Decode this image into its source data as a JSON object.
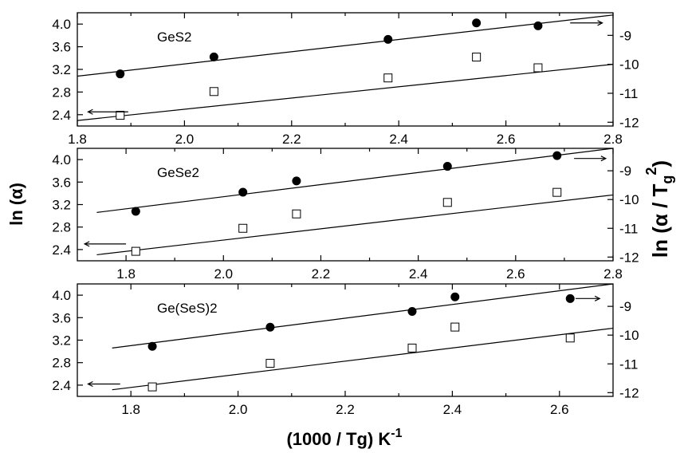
{
  "chart_data": {
    "type": "scatter",
    "xlabel": "(1000 / Tg) K",
    "xlabel_sup": "-1",
    "ylabel_left": "ln (α)",
    "ylabel_right_main": "ln (α / T",
    "ylabel_right_sub": "g",
    "ylabel_right_sup": "2",
    "ylabel_right_close": ")",
    "panels": [
      {
        "label": "GeS2",
        "xlim": [
          1.8,
          2.8
        ],
        "xticks": [
          1.8,
          2.0,
          2.2,
          2.4,
          2.6,
          2.8
        ],
        "xtick_labels": [
          "1.8",
          "2.0",
          "2.2",
          "2.4",
          "2.6",
          "2.8"
        ],
        "ylim_left": [
          2.2,
          4.2
        ],
        "yticks_left": [
          2.4,
          2.8,
          3.2,
          3.6,
          4.0
        ],
        "ytick_labels_left": [
          "2.4",
          "2.8",
          "3.2",
          "3.6",
          "4.0"
        ],
        "ylim_right": [
          -12.13,
          -8.22
        ],
        "yticks_right": [
          -12,
          -11,
          -10,
          -9
        ],
        "ytick_labels_right": [
          "-12",
          "-11",
          "-10",
          "-9"
        ],
        "series": [
          {
            "marker": "filled",
            "axis": "left",
            "x": [
              1.88,
              2.055,
              2.38,
              2.545,
              2.66
            ],
            "y": [
              3.12,
              3.42,
              3.73,
              4.02,
              3.97
            ]
          },
          {
            "marker": "open",
            "axis": "right",
            "x": [
              1.88,
              2.055,
              2.38,
              2.545,
              2.66
            ],
            "y": [
              -11.76,
              -10.94,
              -10.47,
              -9.75,
              -10.12
            ]
          }
        ],
        "fits": [
          {
            "axis": "left",
            "x": [
              1.8,
              2.8
            ],
            "y": [
              3.08,
              4.16
            ]
          },
          {
            "axis": "right",
            "x": [
              1.8,
              2.8
            ],
            "y": [
              -11.94,
              -10.0
            ]
          }
        ],
        "arrows": [
          {
            "dir": "left",
            "x": [
              1.895,
              1.82
            ],
            "y": 2.45,
            "axis": "left"
          },
          {
            "dir": "right",
            "x": [
              2.72,
              2.78
            ],
            "y": 4.02,
            "axis": "left"
          }
        ]
      },
      {
        "label": "GeSe2",
        "xlim": [
          1.7,
          2.8
        ],
        "xticks": [
          1.8,
          2.0,
          2.2,
          2.4,
          2.6,
          2.8
        ],
        "xtick_labels": [
          "1.8",
          "2.0",
          "2.2",
          "2.4",
          "2.6",
          "2.8"
        ],
        "ylim_left": [
          2.2,
          4.2
        ],
        "yticks_left": [
          2.4,
          2.8,
          3.2,
          3.6,
          4.0
        ],
        "ytick_labels_left": [
          "2.4",
          "2.8",
          "3.2",
          "3.6",
          "4.0"
        ],
        "ylim_right": [
          -12.13,
          -8.22
        ],
        "yticks_right": [
          -12,
          -11,
          -10,
          -9
        ],
        "ytick_labels_right": [
          "-12",
          "-11",
          "-10",
          "-9"
        ],
        "series": [
          {
            "marker": "filled",
            "axis": "left",
            "x": [
              1.82,
              2.04,
              2.15,
              2.46,
              2.685
            ],
            "y": [
              3.08,
              3.42,
              3.62,
              3.88,
              4.07
            ]
          },
          {
            "marker": "open",
            "axis": "right",
            "x": [
              1.82,
              2.04,
              2.15,
              2.46,
              2.685
            ],
            "y": [
              -11.8,
              -11.0,
              -10.5,
              -10.1,
              -9.75
            ]
          }
        ],
        "fits": [
          {
            "axis": "left",
            "x": [
              1.74,
              2.8
            ],
            "y": [
              3.06,
              4.2
            ]
          },
          {
            "axis": "right",
            "x": [
              1.74,
              2.8
            ],
            "y": [
              -11.92,
              -9.84
            ]
          }
        ],
        "arrows": [
          {
            "dir": "left",
            "x": [
              1.8,
              1.715
            ],
            "y": 2.5,
            "axis": "left"
          },
          {
            "dir": "right",
            "x": [
              2.72,
              2.785
            ],
            "y": 4.02,
            "axis": "left"
          }
        ]
      },
      {
        "label": "Ge(SeS)2",
        "xlim": [
          1.7,
          2.7
        ],
        "xticks": [
          1.8,
          2.0,
          2.2,
          2.4,
          2.6
        ],
        "xtick_labels": [
          "1.8",
          "2.0",
          "2.2",
          "2.4",
          "2.6"
        ],
        "ylim_left": [
          2.2,
          4.2
        ],
        "yticks_left": [
          2.4,
          2.8,
          3.2,
          3.6,
          4.0
        ],
        "ytick_labels_left": [
          "2.4",
          "2.8",
          "3.2",
          "3.6",
          "4.0"
        ],
        "ylim_right": [
          -12.13,
          -8.22
        ],
        "yticks_right": [
          -12,
          -11,
          -10,
          -9
        ],
        "ytick_labels_right": [
          "-12",
          "-11",
          "-10",
          "-9"
        ],
        "series": [
          {
            "marker": "filled",
            "axis": "left",
            "x": [
              1.84,
              2.06,
              2.325,
              2.405,
              2.62
            ],
            "y": [
              3.09,
              3.43,
              3.71,
              3.97,
              3.94
            ]
          },
          {
            "marker": "open",
            "axis": "right",
            "x": [
              1.84,
              2.06,
              2.325,
              2.405,
              2.62
            ],
            "y": [
              -11.8,
              -10.98,
              -10.45,
              -9.72,
              -10.1
            ]
          }
        ],
        "fits": [
          {
            "axis": "left",
            "x": [
              1.765,
              2.7
            ],
            "y": [
              3.06,
              4.2
            ]
          },
          {
            "axis": "right",
            "x": [
              1.765,
              2.7
            ],
            "y": [
              -11.9,
              -9.76
            ]
          }
        ],
        "arrows": [
          {
            "dir": "left",
            "x": [
              1.78,
              1.72
            ],
            "y": 2.42,
            "axis": "left"
          },
          {
            "dir": "right",
            "x": [
              2.63,
              2.675
            ],
            "y": 3.94,
            "axis": "left"
          }
        ]
      }
    ]
  }
}
